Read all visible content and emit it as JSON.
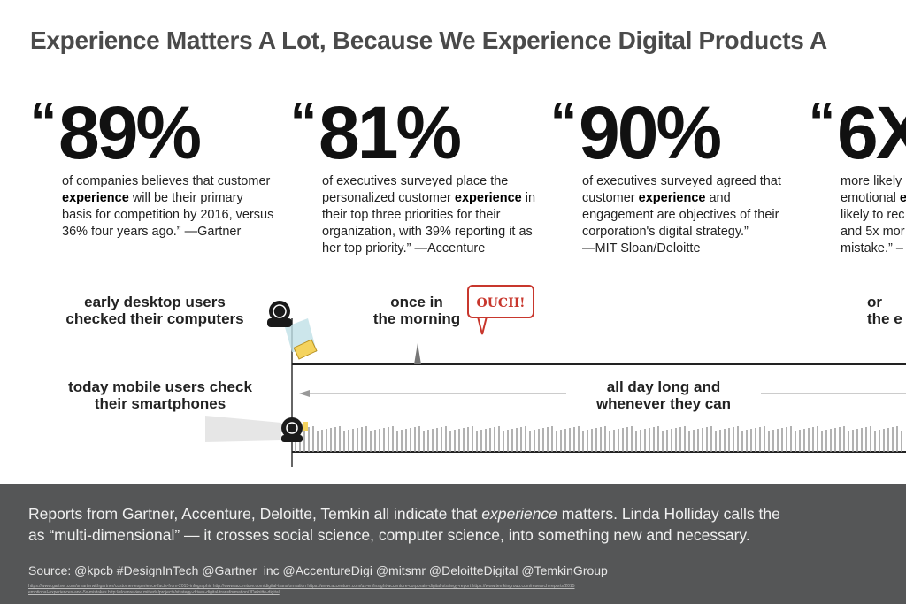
{
  "title": "Experience Matters A Lot, Because We Experience Digital Products A",
  "quote_mark": "“",
  "stats": [
    {
      "value": "89%",
      "text_pre": "of companies believes that customer\n",
      "text_bold": "experience",
      "text_post": " will be their primary\nbasis for competition by 2016, versus\n36% four years ago.” —Gartner"
    },
    {
      "value": "81%",
      "text_pre": "of executives surveyed place the\npersonalized customer ",
      "text_bold": "experience",
      "text_post": " in\ntheir top three priorities for their\norganization, with 39% reporting it as\nher top priority.” —Accenture"
    },
    {
      "value": "90%",
      "text_pre": "of executives surveyed agreed that\ncustomer ",
      "text_bold": "experience",
      "text_post": " and\nengagement are objectives of their\ncorporation's digital strategy.”\n—MIT Sloan/Deloitte"
    },
    {
      "value": "6X",
      "text_pre": "more likely\nemotional ",
      "text_bold": "e",
      "text_post": "\nlikely to rec\nand 5x mor\nmistake.” –"
    }
  ],
  "timeline": {
    "desktop_label": "early desktop users\nchecked their computers",
    "morning_label": "once in\nthe morning",
    "ouch": "OUCH!",
    "evening_label": "or\nthe e",
    "mobile_label": "today mobile users check\ntheir smartphones",
    "allday_label": "all day long and\nwhenever they can"
  },
  "footer": {
    "paragraph_pre": "Reports from Gartner, Accenture, Deloitte, Temkin all indicate that ",
    "paragraph_italic": "experience",
    "paragraph_post": " matters. Linda Holliday calls the",
    "paragraph_line2": "as “multi-dimensional” — it crosses social science, computer science, into something new and necessary.",
    "source": "Source: @kpcb #DesignInTech @Gartner_inc @AccentureDigi @mitsmr @DeloitteDigital @TemkinGroup",
    "links_line1": "https://www.gartner.com/smarterwithgartner/customer-experience-facts-from-2015-infographic http://www.accenture.com/digital-transformation https://www.accenture.com/us-en/insight-accenture-corporate-digital-strategy-report https://www.temkingroup.com/research-reports/2015",
    "links_line2": "emotional-experiences-and-5x-mistakes http://sloanreview.mit.edu/projects/strategy-drives-digital-transformation/ /Deloitte-digital"
  },
  "colors": {
    "footer_bg": "#555657",
    "ouch_red": "#c8372d",
    "title_gray": "#4a4a4a"
  }
}
